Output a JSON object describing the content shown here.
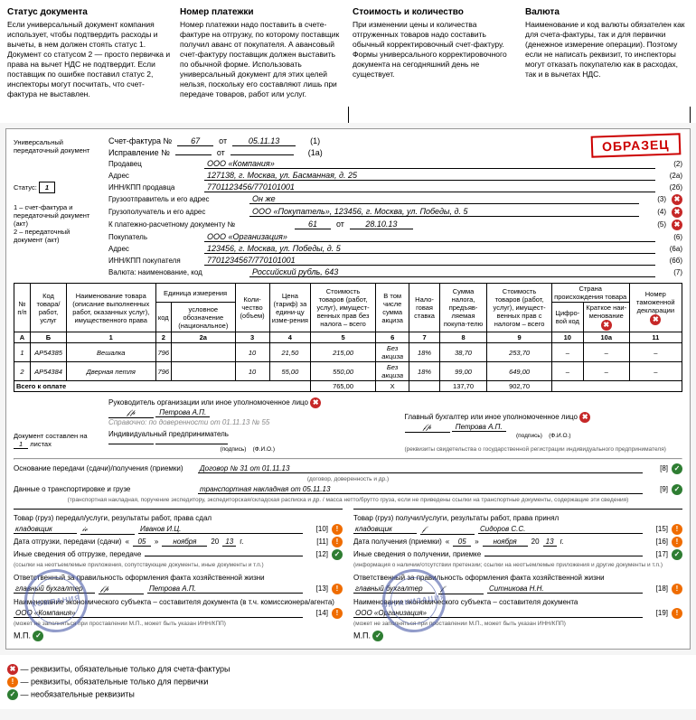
{
  "callouts": [
    {
      "title": "Статус документа",
      "text": "Если универсальный документ компания использует, чтобы подтвердить расходы и вычеты, в нем должен стоять статус 1. Документ со статусом 2 — просто первичка и права на вычет НДС не подтвердит. Если поставщик по ошибке поставил статус 2, инспекторы могут посчитать, что счет-фактура не выставлен."
    },
    {
      "title": "Номер платежки",
      "text": "Номер платежки надо поставить в счете-фактуре на отгрузку, по которому поставщик получил аванс от покупателя. А авансовый счет-фактуру поставщик должен выставить по обычной форме. Использовать универсальный документ для этих целей нельзя, поскольку его составляют лишь при передаче товаров, работ или услуг."
    },
    {
      "title": "Стоимость и количество",
      "text": "При изменении цены и количества отгруженных товаров надо составить обычный корректировочный счет-фактуру. Формы универсального корректировочного документа на сегодняшний день не существует."
    },
    {
      "title": "Валюта",
      "text": "Наименование и код валюты обязателен как для счета-фактуры, так и для первички (денежное измерение операции). Поэтому если не написать реквизит, то инспекторы могут отказать покупателю как в расходах, так и в вычетах НДС."
    }
  ],
  "side": {
    "l1": "Универсальный передаточный документ",
    "l2": "Статус:",
    "status_val": "1",
    "l3": "1 – счет-фактура и передаточный документ (акт)\n2 – передаточный документ (акт)",
    "l4": "Документ составлен на",
    "l4b": "листах",
    "sheets": "1"
  },
  "hdr": {
    "sf": "Счет-фактура №",
    "sf_num": "67",
    "ot": "от",
    "sf_date": "05.11.13",
    "sf_corr": "(1)",
    "isp": "Исправление №",
    "isp_num": "",
    "isp_date": "",
    "isp_tail": "(1а)",
    "seller": "Продавец",
    "seller_v": "ООО «Компания»",
    "r2": "(2)",
    "addr": "Адрес",
    "addr_v": "127138, г. Москва, ул. Басманная, д. 25",
    "r2a": "(2а)",
    "inn": "ИНН/КПП продавца",
    "inn_v": "7701123456/770101001",
    "r2b": "(2б)",
    "shipper": "Грузоотправитель и его адрес",
    "shipper_v": "Он же",
    "r3": "(3)",
    "consig": "Грузополучатель и его адрес",
    "consig_v": "ООО «Покупатель», 123456, г. Москва, ул. Победы, д. 5",
    "r4": "(4)",
    "pay": "К платежно-расчетному документу №",
    "pay_num": "61",
    "pay_ot": "от",
    "pay_date": "28.10.13",
    "r5": "(5)",
    "buyer": "Покупатель",
    "buyer_v": "ООО «Организация»",
    "r6": "(6)",
    "baddr": "Адрес",
    "baddr_v": "123456, г. Москва, ул. Победы, д. 5",
    "r6a": "(6а)",
    "binn": "ИНН/КПП покупателя",
    "binn_v": "7701234567/770101001",
    "r6b": "(6б)",
    "curr": "Валюта: наименование, код",
    "curr_v": "Российский рубль, 643",
    "r7": "(7)"
  },
  "table": {
    "h": [
      "№ п/п",
      "Код товара/ работ, услуг",
      "Наименование товара (описание выполненных работ, оказанных услуг), имущественного права",
      "Единица измерения",
      "Коли-чество (объем)",
      "Цена (тариф) за едини-цу изме-рения",
      "Стоимость товаров (работ, услуг), имущест-венных прав без налога – всего",
      "В том числе сумма акциза",
      "Нало-говая ставка",
      "Сумма налога, предъяв-ляемая покупа-телю",
      "Стоимость товаров (работ, услуг), имущест-венных прав с налогом – всего",
      "Страна происхождения товара",
      "Номер таможенной декларации"
    ],
    "sub": [
      "код",
      "условное обозначение (национальное)",
      "Цифро-вой код",
      "Краткое наи-менование"
    ],
    "idx": [
      "А",
      "Б",
      "1",
      "2",
      "2а",
      "3",
      "4",
      "5",
      "6",
      "7",
      "8",
      "9",
      "10",
      "10а",
      "11"
    ],
    "rows": [
      [
        "1",
        "АР54385",
        "Вешалка",
        "796",
        "",
        "10",
        "21,50",
        "215,00",
        "Без акциза",
        "18%",
        "38,70",
        "253,70",
        "–",
        "–",
        "–"
      ],
      [
        "2",
        "АР54384",
        "Дверная петля",
        "796",
        "",
        "10",
        "55,00",
        "550,00",
        "Без акциза",
        "18%",
        "99,00",
        "649,00",
        "–",
        "–",
        "–"
      ]
    ],
    "total_lbl": "Всего к оплате",
    "total": [
      "765,00",
      "Х",
      "",
      "137,70",
      "902,70"
    ]
  },
  "sig": {
    "ruk": "Руководитель организации или иное уполномоченное лицо",
    "ruk_name": "Петрова А.П.",
    "note": "Справочно: по доверенности от 01.11.13 № 55",
    "ip": "Индивидуальный предприниматель",
    "gb": "Главный бухгалтер или иное уполномоченное лицо",
    "gb_name": "Петрова А.П.",
    "podpis": "(подпись)",
    "fio": "(Ф.И.О.)",
    "ip_note": "(реквизиты свидетельства о государственной регистрации индивидуального предпринимателя)"
  },
  "trans": {
    "r8": "Основание передачи (сдачи)/получения (приемки)",
    "r8v": "Договор № 31 от 01.11.13",
    "r8sub": "(договор, доверенность и др.)",
    "n8": "[8]",
    "r9": "Данные о транспортировке и грузе",
    "r9v": "транспортная накладная от 05.11.13",
    "n9": "[9]",
    "r9sub": "(транспортная накладная, поручение экспедитору, экспедиторская/складская расписка и др. / масса нетто/брутто груза, если не приведены ссылки на транспортные документы, содержащие эти сведения)"
  },
  "left": {
    "r10": "Товар (груз) передал/услуги, результаты работ, права сдал",
    "r10a": "кладовщик",
    "r10b": "Иванов И.Ц.",
    "n10": "[10]",
    "r11": "Дата отгрузки, передачи (сдачи)",
    "d": "05",
    "m": "ноября",
    "y": "13",
    "n11": "[11]",
    "r12": "Иные сведения об отгрузке, передаче",
    "n12": "[12]",
    "r12sub": "(ссылки на неотъемлемые приложения, сопутствующие документы, иные документы и т.п.)",
    "r13": "Ответственный за правильность оформления факта хозяйственной жизни",
    "r13a": "главный бухгалтер",
    "r13b": "Петрова А.П.",
    "n13": "[13]",
    "r14": "Наименование экономического субъекта – составителя документа (в т.ч. комиссионера/агента)",
    "r14v": "ООО «Компания»",
    "n14": "[14]",
    "r14sub": "(может не заполняться при проставлении М.П., может быть указан ИНН/КПП)",
    "mp": "М.П."
  },
  "right": {
    "r15": "Товар (груз) получил/услуги, результаты работ, права принял",
    "r15a": "кладовщик",
    "r15b": "Сидоров С.С.",
    "n15": "[15]",
    "r16": "Дата получения (приемки)",
    "d": "05",
    "m": "ноября",
    "y": "13",
    "n16": "[16]",
    "r17": "Иные сведения о получении, приемке",
    "n17": "[17]",
    "r17sub": "(информация о наличии/отсутствии претензии; ссылки на неотъемлемые приложения и другие документы и т.п.)",
    "r18": "Ответственный за правильность оформления факта хозяйственной жизни",
    "r18a": "главный бухгалтер",
    "r18b": "Ситникова Н.Н.",
    "n18": "[18]",
    "r19": "Наименование экономического субъекта – составителя документа",
    "r19v": "ООО «Организация»",
    "n19": "[19]",
    "r19sub": "(может не заполняться при проставлении М.П., может быть указан ИНН/КПП)",
    "mp": "М.П."
  },
  "stamp1": "КОМПАНИЯ",
  "stamp2": "ОРГАНИЗАЦИЯ",
  "obrazec": "ОБРАЗЕЦ",
  "legend": {
    "red": "— реквизиты, обязательные только для счета-фактуры",
    "orange": "— реквизиты, обязательные только для первички",
    "green": "— необязательные реквизиты"
  }
}
